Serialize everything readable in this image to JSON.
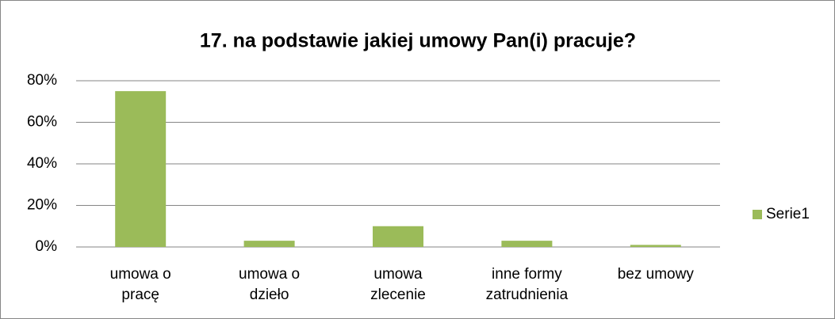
{
  "chart_data": {
    "type": "bar",
    "title": "17. na podstawie jakiej umowy Pan(i) pracuje?",
    "categories": [
      "umowa o pracę",
      "umowa o dzieło",
      "umowa zlecenie",
      "inne formy zatrudnienia",
      "bez umowy"
    ],
    "series": [
      {
        "name": "Serie1",
        "color": "#9bbb59",
        "values": [
          75,
          3,
          10,
          3,
          1
        ]
      }
    ],
    "ylim": [
      0,
      80
    ],
    "yticks": [
      {
        "value": 0,
        "label": "0%"
      },
      {
        "value": 20,
        "label": "20%"
      },
      {
        "value": 40,
        "label": "40%"
      },
      {
        "value": 60,
        "label": "60%"
      },
      {
        "value": 80,
        "label": "80%"
      }
    ],
    "grid": true,
    "legend": "right"
  }
}
